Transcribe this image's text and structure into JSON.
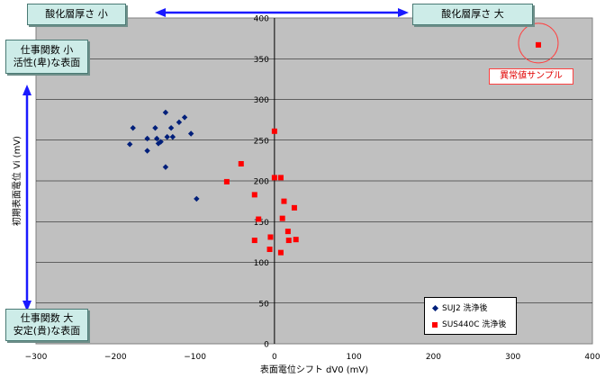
{
  "chart_data": {
    "type": "scatter",
    "xlabel": "表面電位シフト dV0 (mV)",
    "ylabel": "初期表面電位 Vi (mV)",
    "xlim": [
      -300,
      400
    ],
    "ylim": [
      0,
      400
    ],
    "x_ticks": [
      "-300",
      "-200",
      "-100",
      "0",
      "100",
      "200",
      "300",
      "400"
    ],
    "y_ticks": [
      "0",
      "50",
      "100",
      "150",
      "200",
      "250",
      "300",
      "350",
      "400"
    ],
    "grid": "horizontal",
    "legend_position": "bottom-right",
    "series": [
      {
        "name": "SUJ2 洗浄後",
        "marker": "diamond",
        "color": "#001f7a",
        "points": [
          [
            -178,
            265
          ],
          [
            -182,
            245
          ],
          [
            -160,
            252
          ],
          [
            -160,
            237
          ],
          [
            -150,
            265
          ],
          [
            -148,
            252
          ],
          [
            -146,
            246
          ],
          [
            -143,
            248
          ],
          [
            -137,
            284
          ],
          [
            -135,
            254
          ],
          [
            -130,
            265
          ],
          [
            -128,
            254
          ],
          [
            -120,
            272
          ],
          [
            -113,
            278
          ],
          [
            -105,
            258
          ],
          [
            -137,
            217
          ],
          [
            -98,
            178
          ]
        ]
      },
      {
        "name": "SUS440C 洗浄後",
        "marker": "square",
        "color": "#ff0000",
        "points": [
          [
            0,
            261
          ],
          [
            0,
            204
          ],
          [
            8,
            204
          ],
          [
            -42,
            221
          ],
          [
            -60,
            199
          ],
          [
            -25,
            183
          ],
          [
            -20,
            153
          ],
          [
            12,
            175
          ],
          [
            10,
            154
          ],
          [
            25,
            167
          ],
          [
            17,
            138
          ],
          [
            -25,
            127
          ],
          [
            -5,
            131
          ],
          [
            18,
            127
          ],
          [
            27,
            128
          ],
          [
            -6,
            116
          ],
          [
            8,
            112
          ],
          [
            332,
            367
          ]
        ]
      }
    ],
    "annotations": {
      "oxide_small": "酸化層厚さ 小",
      "oxide_large": "酸化層厚さ 大",
      "wf_small_line1": "仕事関数 小",
      "wf_small_line2": "活性(卑)な表面",
      "wf_large_line1": "仕事関数 大",
      "wf_large_line2": "安定(貴)な表面",
      "outlier": "異常値サンプル"
    },
    "outlier_point": [
      332,
      367
    ]
  }
}
